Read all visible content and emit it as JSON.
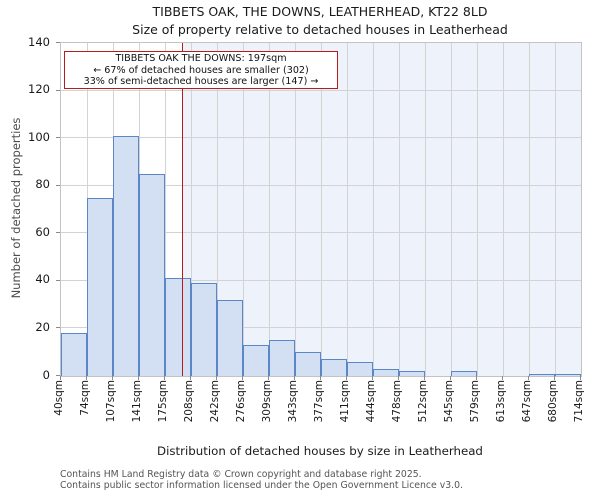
{
  "title": {
    "line1": "TIBBETS OAK, THE DOWNS, LEATHERHEAD, KT22 8LD",
    "line2": "Size of property relative to detached houses in Leatherhead"
  },
  "annotation": {
    "line1": "TIBBETS OAK THE DOWNS: 197sqm",
    "line2": "← 67% of detached houses are smaller (302)",
    "line3": "33% of semi-detached houses are larger (147) →"
  },
  "chart_data": {
    "type": "bar",
    "title": "TIBBETS OAK, THE DOWNS, LEATHERHEAD, KT22 8LD",
    "subtitle": "Size of property relative to detached houses in Leatherhead",
    "xlabel": "Distribution of detached houses by size in Leatherhead",
    "ylabel": "Number of detached properties",
    "bin_edges_sqm": [
      40,
      74,
      107,
      141,
      175,
      208,
      242,
      276,
      309,
      343,
      377,
      411,
      444,
      478,
      512,
      545,
      579,
      613,
      647,
      680,
      714
    ],
    "x_tick_labels": [
      "40sqm",
      "74sqm",
      "107sqm",
      "141sqm",
      "175sqm",
      "208sqm",
      "242sqm",
      "276sqm",
      "309sqm",
      "343sqm",
      "377sqm",
      "411sqm",
      "444sqm",
      "478sqm",
      "512sqm",
      "545sqm",
      "579sqm",
      "613sqm",
      "647sqm",
      "680sqm",
      "714sqm"
    ],
    "values": [
      18,
      75,
      101,
      85,
      41,
      39,
      32,
      13,
      15,
      10,
      7,
      6,
      3,
      2,
      0,
      2,
      0,
      0,
      1,
      1
    ],
    "y_ticks": [
      0,
      20,
      40,
      60,
      80,
      100,
      120,
      140
    ],
    "ylim": [
      0,
      140
    ],
    "marker_value_sqm": 197,
    "grid": true,
    "legend_position": "none"
  },
  "colors": {
    "bar_fill": "#d3dff2",
    "bar_edge": "#5a87c8",
    "marker_line": "#b51d1d",
    "annotation_border": "#b51d1d",
    "shade_background": "#edf2fb",
    "gridline": "#d3d3d3",
    "footer_text": "#555555"
  },
  "footer": {
    "line1": "Contains HM Land Registry data © Crown copyright and database right 2025.",
    "line2": "Contains public sector information licensed under the Open Government Licence v3.0."
  }
}
